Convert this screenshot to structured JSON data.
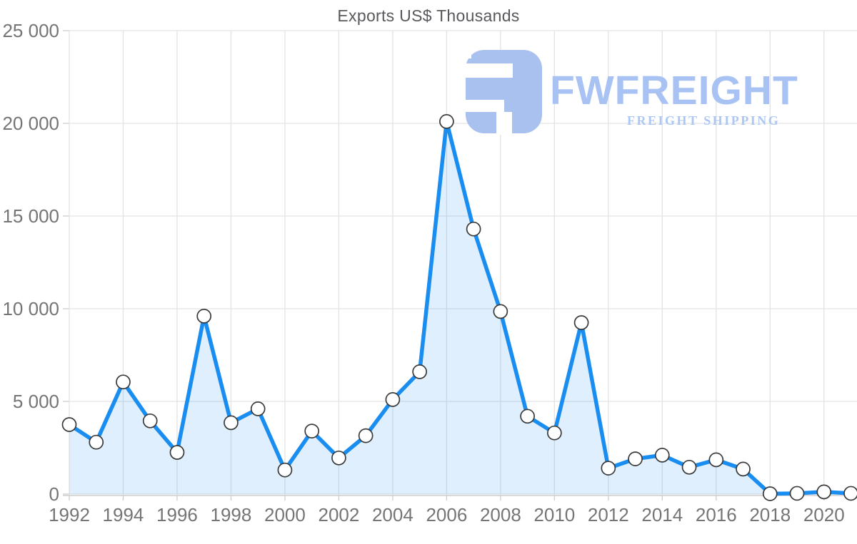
{
  "chart_data": {
    "type": "area",
    "title": "Exports US$ Thousands",
    "x": [
      1992,
      1993,
      1994,
      1995,
      1996,
      1997,
      1998,
      1999,
      2000,
      2001,
      2002,
      2003,
      2004,
      2005,
      2006,
      2007,
      2008,
      2009,
      2010,
      2011,
      2012,
      2013,
      2014,
      2015,
      2016,
      2017,
      2018,
      2019,
      2020,
      2021
    ],
    "values": [
      3750,
      2800,
      6050,
      3950,
      2250,
      9600,
      3850,
      4600,
      1300,
      3400,
      1950,
      3150,
      5100,
      6600,
      20100,
      14300,
      9850,
      4200,
      3300,
      9250,
      1400,
      1900,
      2100,
      1450,
      1850,
      1350,
      20,
      40,
      120,
      40
    ],
    "xlabel": "",
    "ylabel": "",
    "ylim": [
      0,
      25000
    ],
    "y_ticks": [
      0,
      5000,
      10000,
      15000,
      20000,
      25000
    ],
    "y_tick_labels": [
      "0",
      "5 000",
      "10 000",
      "15 000",
      "20 000",
      "25 000"
    ],
    "x_tick_labels": [
      "1992",
      "1994",
      "1996",
      "1998",
      "2000",
      "2002",
      "2004",
      "2006",
      "2008",
      "2010",
      "2012",
      "2014",
      "2016",
      "2018",
      "2020"
    ],
    "x_tick_step": 2,
    "grid": "on",
    "legend": "none",
    "colors": {
      "line": "#1a8df0",
      "area_fill": "rgba(26,141,240,0.14)",
      "marker_fill": "#ffffff",
      "marker_stroke": "#3a3a3a",
      "gridline": "#e3e3e3",
      "axis_line": "#cdcdcd",
      "tick_label": "#757575",
      "title": "#58595c"
    }
  },
  "watermark": {
    "brand": "FWFREIGHT",
    "tagline": "FREIGHT SHIPPING",
    "logo_color": "#a9c1ee"
  }
}
